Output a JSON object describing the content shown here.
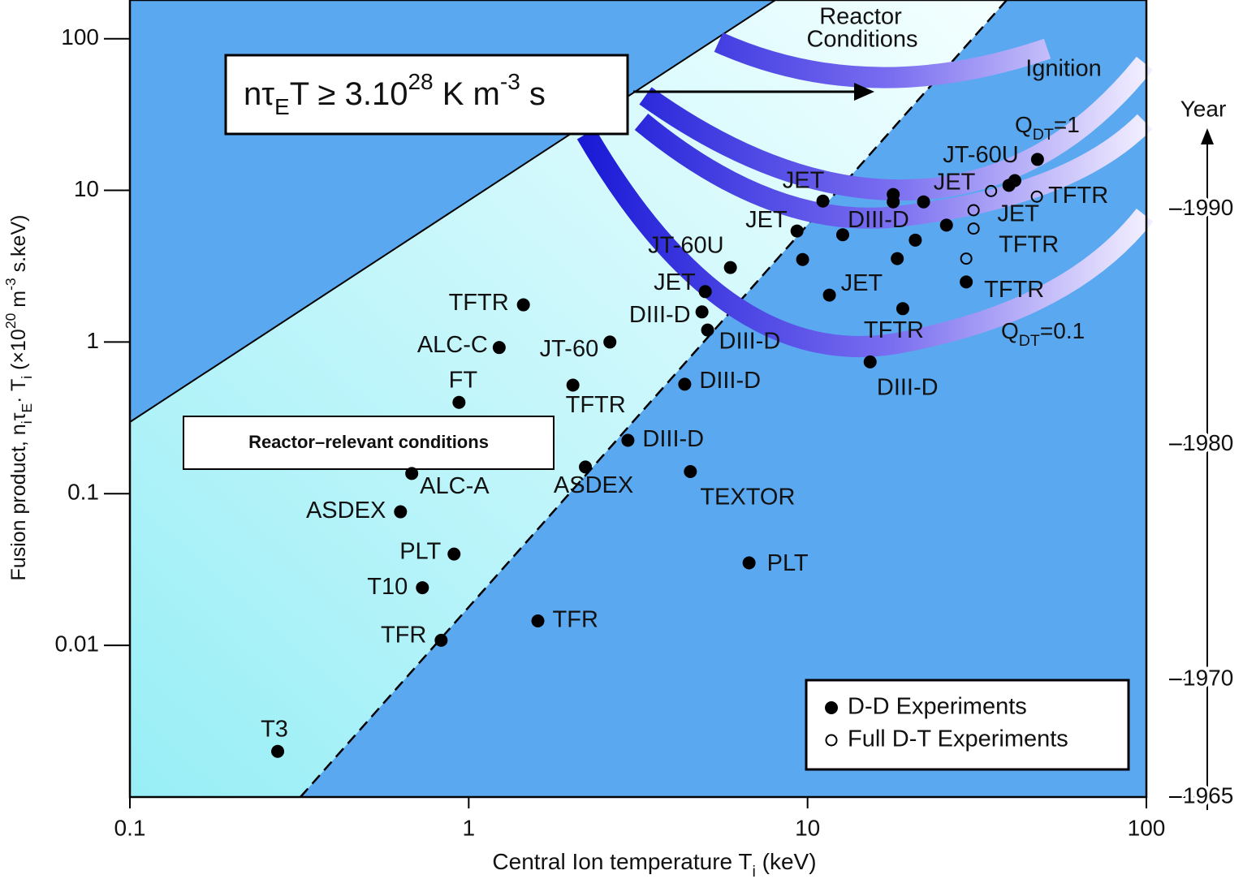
{
  "chart_data": {
    "type": "scatter",
    "x_label": [
      "Central Ion temperature T",
      "i",
      " (keV)"
    ],
    "y_label": [
      "Fusion product, n",
      "i",
      "τ",
      "E",
      "· T",
      "i",
      " (×10",
      "20",
      " m",
      "-3",
      " s.keV)"
    ],
    "y2_label": "Year",
    "xscale": "log",
    "yscale": "log",
    "xlim": [
      0.1,
      100
    ],
    "ylim": [
      0.001,
      180
    ],
    "xticks": [
      0.1,
      1,
      10,
      100
    ],
    "yticks": [
      0.01,
      0.1,
      1,
      10,
      100
    ],
    "y2lim": [
      1965,
      1998.9
    ],
    "y2ticks": [
      1965,
      1970,
      1980,
      1990
    ],
    "legend": "lower right",
    "series": [
      {
        "name": "D-D Experiments",
        "marker": "filled",
        "color": "#000000",
        "x": [
          0.273,
          0.829,
          0.73,
          0.905,
          0.629,
          0.679,
          0.936,
          1.23,
          1.45,
          2.61,
          2.03,
          2.21,
          2.95,
          1.6,
          4.51,
          6.72,
          4.34,
          5.07,
          4.88,
          4.99,
          5.92,
          9.31,
          11.1,
          9.67,
          12.7,
          11.6,
          18.4,
          20.8,
          17.9,
          17.9,
          22.0,
          25.7,
          15.3,
          19.1,
          29.4,
          40.9,
          39.3,
          47.7
        ],
        "values": [
          0.002,
          0.0108,
          0.024,
          0.04,
          0.076,
          0.136,
          0.4,
          0.92,
          1.76,
          1.0,
          0.52,
          0.15,
          0.225,
          0.0145,
          0.14,
          0.035,
          0.527,
          1.2,
          1.58,
          2.15,
          3.1,
          5.4,
          8.5,
          3.5,
          5.1,
          2.04,
          3.55,
          4.7,
          9.4,
          8.4,
          8.4,
          5.9,
          0.74,
          1.66,
          2.49,
          11.6,
          10.8,
          16
        ],
        "labels": [
          "T3",
          "TFR",
          "T10",
          "PLT",
          "ASDEX",
          "ALC-A",
          "FT",
          "ALC-C",
          "TFTR",
          "JT-60",
          "TFTR",
          "ASDEX",
          "DIII-D",
          "TFR",
          "TEXTOR",
          "PLT",
          "DIII-D",
          "DIII-D",
          "DIII-D",
          "JET",
          "JT-60U",
          "JET",
          "JET",
          null,
          "DIII-D",
          "JET",
          null,
          null,
          null,
          null,
          "JET",
          null,
          "DIII-D",
          "TFTR",
          "TFTR",
          "JT-60U",
          null,
          null
        ]
      },
      {
        "name": "Full D-T Experiments",
        "marker": "open",
        "color": "#000000",
        "x": [
          34.8,
          47.5,
          30.9,
          30.9,
          29.4
        ],
        "values": [
          9.9,
          9.1,
          7.4,
          5.6,
          3.55
        ],
        "labels": [
          null,
          "TFTR",
          "JET",
          "TFTR",
          null
        ]
      }
    ],
    "annotations": {
      "reactor_conditions": [
        "Reactor",
        "Conditions"
      ],
      "ignition": "Ignition",
      "qdt1": [
        "Q",
        "DT",
        "=1"
      ],
      "qdt01": [
        "Q",
        "DT",
        "=0.1"
      ],
      "formula": [
        "nτ",
        "E",
        "T ≥ 3.10",
        "28",
        " K m",
        "-3",
        " s"
      ],
      "reactor_relevant": "Reactor–relevant conditions"
    }
  }
}
